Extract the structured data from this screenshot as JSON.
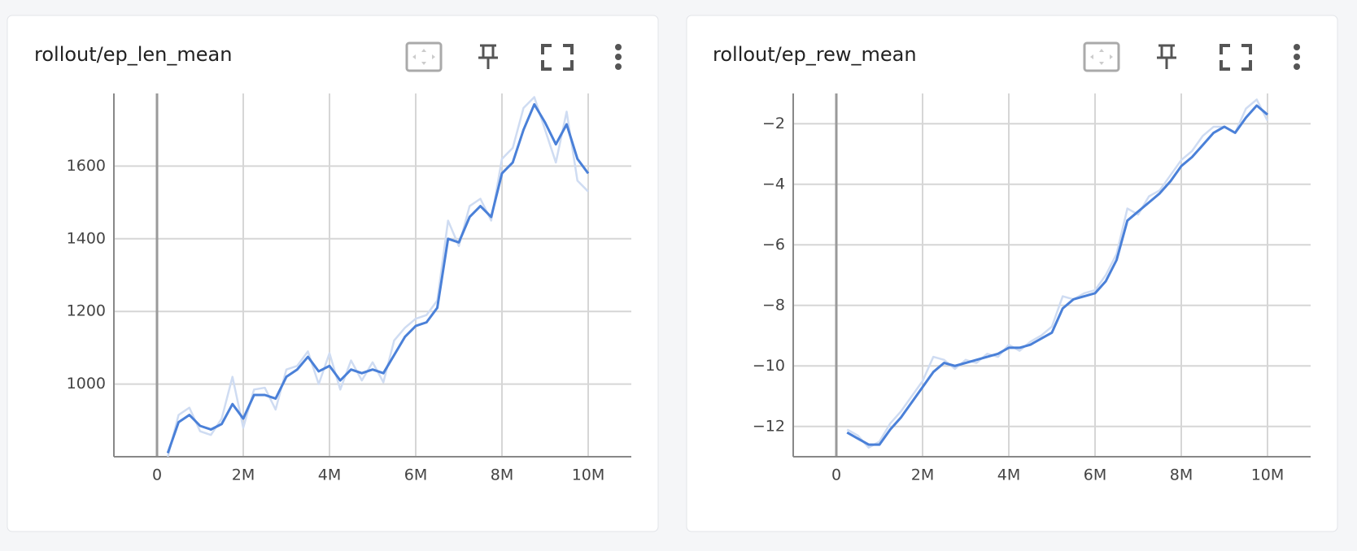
{
  "chart_data": [
    {
      "type": "line",
      "title": "rollout/ep_len_mean",
      "x": [
        250000,
        500000,
        750000,
        1000000,
        1250000,
        1500000,
        1750000,
        2000000,
        2250000,
        2500000,
        2750000,
        3000000,
        3250000,
        3500000,
        3750000,
        4000000,
        4250000,
        4500000,
        4750000,
        5000000,
        5250000,
        5500000,
        5750000,
        6000000,
        6250000,
        6500000,
        6750000,
        7000000,
        7250000,
        7500000,
        7750000,
        8000000,
        8250000,
        8500000,
        8750000,
        9000000,
        9250000,
        9500000,
        9750000,
        10000000
      ],
      "series": [
        {
          "color": "#cfdcf2",
          "values": [
            800,
            915,
            935,
            870,
            860,
            905,
            1020,
            880,
            985,
            990,
            930,
            1040,
            1050,
            1090,
            1000,
            1085,
            985,
            1065,
            1010,
            1060,
            1005,
            1120,
            1155,
            1180,
            1190,
            1230,
            1450,
            1380,
            1490,
            1510,
            1450,
            1620,
            1650,
            1760,
            1790,
            1700,
            1610,
            1750,
            1560,
            1530
          ]
        },
        {
          "color": "#4a80d8",
          "values": [
            810,
            895,
            915,
            885,
            875,
            890,
            945,
            905,
            970,
            970,
            960,
            1020,
            1040,
            1075,
            1035,
            1050,
            1010,
            1040,
            1030,
            1040,
            1030,
            1080,
            1130,
            1160,
            1170,
            1210,
            1400,
            1390,
            1460,
            1490,
            1460,
            1580,
            1610,
            1700,
            1770,
            1720,
            1660,
            1715,
            1620,
            1580
          ]
        }
      ],
      "xlim": [
        -1000000,
        11000000
      ],
      "ylim": [
        800,
        1800
      ],
      "xticks": [
        0,
        {
          "value": 2000000,
          "label": "2M"
        },
        {
          "value": 4000000,
          "label": "4M"
        },
        {
          "value": 6000000,
          "label": "6M"
        },
        {
          "value": 8000000,
          "label": "8M"
        },
        {
          "value": 10000000,
          "label": "10M"
        }
      ],
      "yticks": [
        1000,
        1200,
        1400,
        1600
      ],
      "grid": true
    },
    {
      "type": "line",
      "title": "rollout/ep_rew_mean",
      "x": [
        250000,
        500000,
        750000,
        1000000,
        1250000,
        1500000,
        1750000,
        2000000,
        2250000,
        2500000,
        2750000,
        3000000,
        3250000,
        3500000,
        3750000,
        4000000,
        4250000,
        4500000,
        4750000,
        5000000,
        5250000,
        5500000,
        5750000,
        6000000,
        6250000,
        6500000,
        6750000,
        7000000,
        7250000,
        7500000,
        7750000,
        8000000,
        8250000,
        8500000,
        8750000,
        9000000,
        9250000,
        9500000,
        9750000,
        10000000
      ],
      "series": [
        {
          "color": "#cfdcf2",
          "values": [
            -12.1,
            -12.3,
            -12.7,
            -12.5,
            -11.9,
            -11.5,
            -11.0,
            -10.5,
            -9.7,
            -9.8,
            -10.1,
            -9.8,
            -9.9,
            -9.6,
            -9.7,
            -9.3,
            -9.5,
            -9.2,
            -9.0,
            -8.7,
            -7.7,
            -7.8,
            -7.6,
            -7.5,
            -7.0,
            -6.3,
            -4.8,
            -5.0,
            -4.4,
            -4.2,
            -3.7,
            -3.2,
            -2.9,
            -2.4,
            -2.1,
            -2.1,
            -2.3,
            -1.5,
            -1.2,
            -1.9
          ]
        },
        {
          "color": "#4a80d8",
          "values": [
            -12.2,
            -12.4,
            -12.6,
            -12.6,
            -12.1,
            -11.7,
            -11.2,
            -10.7,
            -10.2,
            -9.9,
            -10.0,
            -9.9,
            -9.8,
            -9.7,
            -9.6,
            -9.4,
            -9.4,
            -9.3,
            -9.1,
            -8.9,
            -8.1,
            -7.8,
            -7.7,
            -7.6,
            -7.2,
            -6.5,
            -5.2,
            -4.9,
            -4.6,
            -4.3,
            -3.9,
            -3.4,
            -3.1,
            -2.7,
            -2.3,
            -2.1,
            -2.3,
            -1.8,
            -1.4,
            -1.7
          ]
        }
      ],
      "xlim": [
        -1000000,
        11000000
      ],
      "ylim": [
        -13,
        -1
      ],
      "xticks": [
        0,
        {
          "value": 2000000,
          "label": "2M"
        },
        {
          "value": 4000000,
          "label": "4M"
        },
        {
          "value": 6000000,
          "label": "6M"
        },
        {
          "value": 8000000,
          "label": "8M"
        },
        {
          "value": 10000000,
          "label": "10M"
        }
      ],
      "yticks": [
        {
          "value": -12,
          "label": "−12"
        },
        {
          "value": -10,
          "label": "−10"
        },
        {
          "value": -8,
          "label": "−8"
        },
        {
          "value": -6,
          "label": "−6"
        },
        {
          "value": -4,
          "label": "−4"
        },
        {
          "value": -2,
          "label": "−2"
        }
      ],
      "grid": true
    }
  ]
}
